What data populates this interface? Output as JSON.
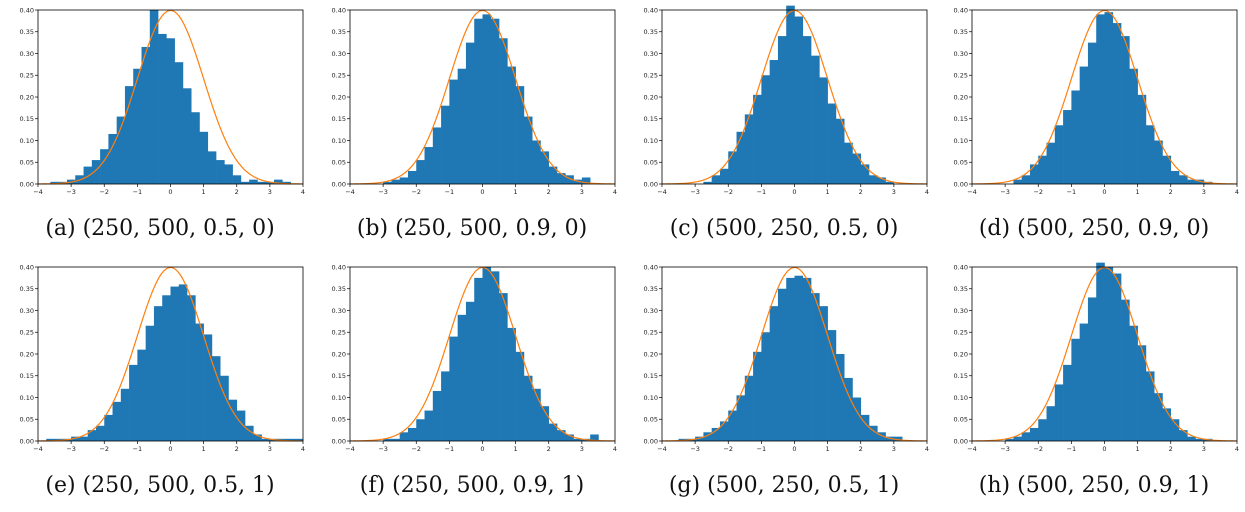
{
  "colors": {
    "bar": "#1f77b4",
    "curve": "#ff7f0e",
    "axis": "#000000"
  },
  "chart_data": [
    {
      "type": "bar",
      "caption": "(a) (250, 500, 0.5, 0)",
      "xlim": [
        -4,
        4
      ],
      "ylim": [
        0,
        0.4
      ],
      "xticks": [
        "−4",
        "−3",
        "−2",
        "−1",
        "0",
        "1",
        "2",
        "3",
        "4"
      ],
      "yticks": [
        "0.00",
        "0.05",
        "0.10",
        "0.15",
        "0.20",
        "0.25",
        "0.30",
        "0.35",
        "0.40"
      ],
      "bin_start": -3.625,
      "bin_width": 0.25,
      "values": [
        0.005,
        0.005,
        0.01,
        0.02,
        0.04,
        0.055,
        0.08,
        0.115,
        0.155,
        0.225,
        0.265,
        0.315,
        0.4,
        0.345,
        0.335,
        0.28,
        0.22,
        0.165,
        0.12,
        0.075,
        0.055,
        0.045,
        0.02,
        0.005,
        0.01,
        0.005,
        0.005,
        0.01,
        0.005
      ],
      "curve": "normal"
    },
    {
      "type": "bar",
      "caption": "(b) (250, 500, 0.9, 0)",
      "xlim": [
        -4,
        4
      ],
      "ylim": [
        0,
        0.4
      ],
      "xticks": [
        "−4",
        "−3",
        "−2",
        "−1",
        "0",
        "1",
        "2",
        "3",
        "4"
      ],
      "yticks": [
        "0.00",
        "0.05",
        "0.10",
        "0.15",
        "0.20",
        "0.25",
        "0.30",
        "0.35",
        "0.40"
      ],
      "bin_start": -3.0,
      "bin_width": 0.25,
      "values": [
        0.005,
        0.01,
        0.015,
        0.03,
        0.055,
        0.085,
        0.13,
        0.18,
        0.24,
        0.265,
        0.325,
        0.38,
        0.39,
        0.38,
        0.335,
        0.27,
        0.225,
        0.155,
        0.1,
        0.075,
        0.04,
        0.025,
        0.02,
        0.01,
        0.015
      ],
      "curve": "normal"
    },
    {
      "type": "bar",
      "caption": "(c) (500, 250, 0.5, 0)",
      "xlim": [
        -4,
        4
      ],
      "ylim": [
        0,
        0.4
      ],
      "xticks": [
        "−4",
        "−3",
        "−2",
        "−1",
        "0",
        "1",
        "2",
        "3",
        "4"
      ],
      "yticks": [
        "0.00",
        "0.05",
        "0.10",
        "0.15",
        "0.20",
        "0.25",
        "0.30",
        "0.35",
        "0.40"
      ],
      "bin_start": -2.75,
      "bin_width": 0.25,
      "values": [
        0.005,
        0.02,
        0.035,
        0.075,
        0.12,
        0.16,
        0.205,
        0.25,
        0.285,
        0.34,
        0.41,
        0.385,
        0.34,
        0.295,
        0.245,
        0.185,
        0.15,
        0.095,
        0.07,
        0.045,
        0.02,
        0.015,
        0.005
      ],
      "curve": "normal"
    },
    {
      "type": "bar",
      "caption": "(d) (500, 250, 0.9, 0)",
      "xlim": [
        -4,
        4
      ],
      "ylim": [
        0,
        0.4
      ],
      "xticks": [
        "−4",
        "−3",
        "−2",
        "−1",
        "0",
        "1",
        "2",
        "3",
        "4"
      ],
      "yticks": [
        "0.00",
        "0.05",
        "0.10",
        "0.15",
        "0.20",
        "0.25",
        "0.30",
        "0.35",
        "0.40"
      ],
      "bin_start": -2.75,
      "bin_width": 0.25,
      "values": [
        0.01,
        0.02,
        0.045,
        0.065,
        0.095,
        0.135,
        0.17,
        0.215,
        0.27,
        0.325,
        0.39,
        0.395,
        0.37,
        0.34,
        0.265,
        0.205,
        0.135,
        0.1,
        0.065,
        0.03,
        0.02,
        0.01,
        0.01,
        0.005
      ],
      "curve": "normal"
    },
    {
      "type": "bar",
      "caption": "(e) (250, 500, 0.5, 1)",
      "xlim": [
        -4,
        4
      ],
      "ylim": [
        0,
        0.4
      ],
      "xticks": [
        "−4",
        "−3",
        "−2",
        "−1",
        "0",
        "1",
        "2",
        "3",
        "4"
      ],
      "yticks": [
        "0.00",
        "0.05",
        "0.10",
        "0.15",
        "0.20",
        "0.25",
        "0.30",
        "0.35",
        "0.40"
      ],
      "bin_start": -3.75,
      "bin_width": 0.25,
      "values": [
        0.005,
        0.005,
        0.005,
        0.01,
        0.01,
        0.025,
        0.035,
        0.06,
        0.09,
        0.12,
        0.175,
        0.21,
        0.265,
        0.31,
        0.335,
        0.355,
        0.36,
        0.335,
        0.27,
        0.245,
        0.195,
        0.15,
        0.095,
        0.07,
        0.035,
        0.015,
        0.005,
        0.005,
        0.005,
        0.005,
        0.005
      ],
      "curve": "normal"
    },
    {
      "type": "bar",
      "caption": "(f) (250, 500, 0.9, 1)",
      "xlim": [
        -4,
        4
      ],
      "ylim": [
        0,
        0.4
      ],
      "xticks": [
        "−4",
        "−3",
        "−2",
        "−1",
        "0",
        "1",
        "2",
        "3",
        "4"
      ],
      "yticks": [
        "0.00",
        "0.05",
        "0.10",
        "0.15",
        "0.20",
        "0.25",
        "0.30",
        "0.35",
        "0.40"
      ],
      "bin_start": -3.0,
      "bin_width": 0.25,
      "values": [
        0.005,
        0.005,
        0.02,
        0.03,
        0.05,
        0.07,
        0.115,
        0.16,
        0.24,
        0.29,
        0.32,
        0.375,
        0.4,
        0.39,
        0.34,
        0.26,
        0.205,
        0.15,
        0.12,
        0.08,
        0.04,
        0.025,
        0.015,
        0.005,
        0.005,
        0.015
      ],
      "curve": "normal"
    },
    {
      "type": "bar",
      "caption": "(g) (500, 250, 0.5, 1)",
      "xlim": [
        -4,
        4
      ],
      "ylim": [
        0,
        0.4
      ],
      "xticks": [
        "−4",
        "−3",
        "−2",
        "−1",
        "0",
        "1",
        "2",
        "3",
        "4"
      ],
      "yticks": [
        "0.00",
        "0.05",
        "0.10",
        "0.15",
        "0.20",
        "0.25",
        "0.30",
        "0.35",
        "0.40"
      ],
      "bin_start": -3.5,
      "bin_width": 0.25,
      "values": [
        0.005,
        0.005,
        0.01,
        0.02,
        0.03,
        0.045,
        0.07,
        0.105,
        0.15,
        0.205,
        0.25,
        0.31,
        0.35,
        0.375,
        0.38,
        0.375,
        0.34,
        0.31,
        0.255,
        0.2,
        0.145,
        0.1,
        0.06,
        0.035,
        0.02,
        0.01,
        0.01
      ],
      "curve": "normal"
    },
    {
      "type": "bar",
      "caption": "(h) (500, 250, 0.9, 1)",
      "xlim": [
        -4,
        4
      ],
      "ylim": [
        0,
        0.4
      ],
      "xticks": [
        "−4",
        "−3",
        "−2",
        "−1",
        "0",
        "1",
        "2",
        "3",
        "4"
      ],
      "yticks": [
        "0.00",
        "0.05",
        "0.10",
        "0.15",
        "0.20",
        "0.25",
        "0.30",
        "0.35",
        "0.40"
      ],
      "bin_start": -3.0,
      "bin_width": 0.25,
      "values": [
        0.005,
        0.01,
        0.02,
        0.03,
        0.05,
        0.08,
        0.13,
        0.175,
        0.235,
        0.27,
        0.33,
        0.41,
        0.4,
        0.385,
        0.325,
        0.265,
        0.22,
        0.16,
        0.11,
        0.075,
        0.05,
        0.025,
        0.01,
        0.005,
        0.005
      ],
      "curve": "normal"
    }
  ]
}
